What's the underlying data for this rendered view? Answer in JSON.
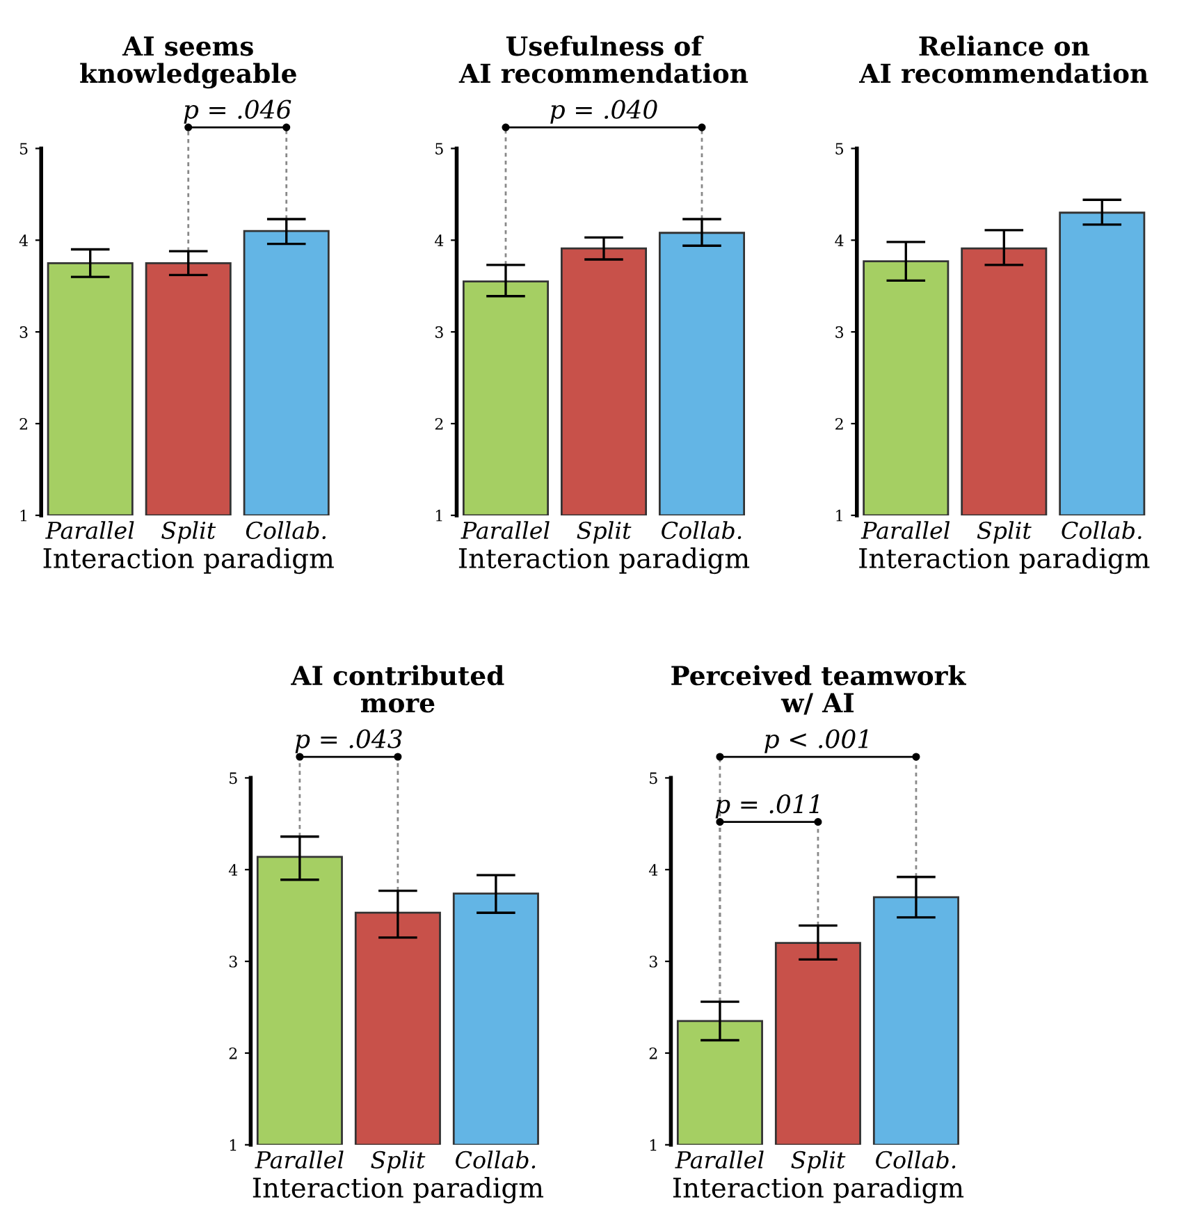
{
  "chart_data": [
    {
      "type": "bar",
      "title": "AI seems\nknowledgeable",
      "xlabel": "Interaction paradigm",
      "categories": [
        "Parallel",
        "Split",
        "Collab."
      ],
      "values": [
        3.75,
        3.75,
        4.1
      ],
      "errors": [
        [
          3.6,
          3.9
        ],
        [
          3.62,
          3.88
        ],
        [
          3.96,
          4.23
        ]
      ],
      "colors": [
        "#a5cf63",
        "#c8514a",
        "#63b5e5"
      ],
      "ylim": [
        1,
        5
      ],
      "yticks": [
        1,
        2,
        3,
        4,
        5
      ],
      "annotations": [
        {
          "text": "p = .046",
          "x": "Collab.",
          "y": 4.23
        }
      ]
    },
    {
      "type": "bar",
      "title": "Usefulness of\nAI recommendation",
      "xlabel": "Interaction paradigm",
      "categories": [
        "Parallel",
        "Split",
        "Collab."
      ],
      "values": [
        3.55,
        3.91,
        4.08
      ],
      "errors": [
        [
          3.39,
          3.73
        ],
        [
          3.79,
          4.03
        ],
        [
          3.94,
          4.23
        ]
      ],
      "colors": [
        "#a5cf63",
        "#c8514a",
        "#63b5e5"
      ],
      "ylim": [
        1,
        5
      ],
      "yticks": [
        1,
        2,
        3,
        4,
        5
      ],
      "annotations": [
        "p = .040"
      ]
    },
    {
      "type": "bar",
      "title": "Reliance on\nAI recommendation",
      "xlabel": "Interaction paradigm",
      "categories": [
        "Parallel",
        "Split",
        "Collab."
      ],
      "values": [
        3.77,
        3.91,
        4.3
      ],
      "errors": [
        [
          3.56,
          3.98
        ],
        [
          3.73,
          4.11
        ],
        [
          4.17,
          4.44
        ]
      ],
      "colors": [
        "#a5cf63",
        "#c8514a",
        "#63b5e5"
      ],
      "ylim": [
        1,
        5
      ],
      "yticks": [
        1,
        2,
        3,
        4,
        5
      ]
    },
    {
      "type": "bar",
      "title": "AI contributed\nmore",
      "xlabel": "Interaction paradigm",
      "categories": [
        "Parallel",
        "Split",
        "Collab."
      ],
      "values": [
        4.14,
        3.53,
        3.74
      ],
      "errors": [
        [
          3.89,
          4.36
        ],
        [
          3.26,
          3.77
        ],
        [
          3.53,
          3.94
        ]
      ],
      "colors": [
        "#a5cf63",
        "#c8514a",
        "#63b5e5"
      ],
      "ylim": [
        1,
        5
      ],
      "yticks": [
        1,
        2,
        3,
        4,
        5
      ],
      "annotations": [
        {
          "text": "p = .043",
          "x": "Parallel",
          "y": 4.36
        }
      ]
    },
    {
      "type": "bar",
      "title": "Perceived teamwork\nw/ AI",
      "xlabel": "Interaction paradigm",
      "categories": [
        "Parallel",
        "Split",
        "Collab."
      ],
      "values": [
        2.35,
        3.2,
        3.7
      ],
      "errors": [
        [
          2.14,
          2.56
        ],
        [
          3.02,
          3.39
        ],
        [
          3.48,
          3.92
        ]
      ],
      "colors": [
        "#a5cf63",
        "#c8514a",
        "#63b5e5"
      ],
      "ylim": [
        1,
        5
      ],
      "yticks": [
        1,
        2,
        3,
        4,
        5
      ],
      "annotations": [
        "p < .001",
        {
          "text": "p = .011",
          "x": "Split",
          "y": 3.39
        }
      ]
    }
  ]
}
